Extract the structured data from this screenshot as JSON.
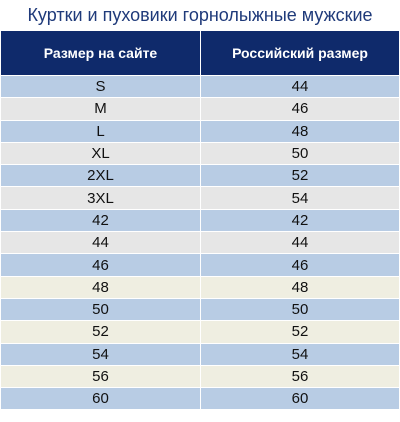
{
  "title": "Куртки и пуховики горнолыжные мужские",
  "headers": [
    "Размер на сайте",
    "Российский размер"
  ],
  "colors": {
    "header_bg": "#0f2a6b",
    "title_text": "#1f3a7a",
    "blue": "#b8cce4",
    "gray": "#e6e6e6",
    "beige": "#efeee1"
  },
  "rows": [
    {
      "site": "S",
      "ru": "44",
      "tone": "blue"
    },
    {
      "site": "M",
      "ru": "46",
      "tone": "gray"
    },
    {
      "site": "L",
      "ru": "48",
      "tone": "blue"
    },
    {
      "site": "XL",
      "ru": "50",
      "tone": "gray"
    },
    {
      "site": "2XL",
      "ru": "52",
      "tone": "blue"
    },
    {
      "site": "3XL",
      "ru": "54",
      "tone": "gray"
    },
    {
      "site": "42",
      "ru": "42",
      "tone": "blue"
    },
    {
      "site": "44",
      "ru": "44",
      "tone": "gray"
    },
    {
      "site": "46",
      "ru": "46",
      "tone": "blue"
    },
    {
      "site": "48",
      "ru": "48",
      "tone": "beige"
    },
    {
      "site": "50",
      "ru": "50",
      "tone": "blue"
    },
    {
      "site": "52",
      "ru": "52",
      "tone": "beige"
    },
    {
      "site": "54",
      "ru": "54",
      "tone": "blue"
    },
    {
      "site": "56",
      "ru": "56",
      "tone": "beige"
    },
    {
      "site": "60",
      "ru": "60",
      "tone": "blue"
    }
  ]
}
